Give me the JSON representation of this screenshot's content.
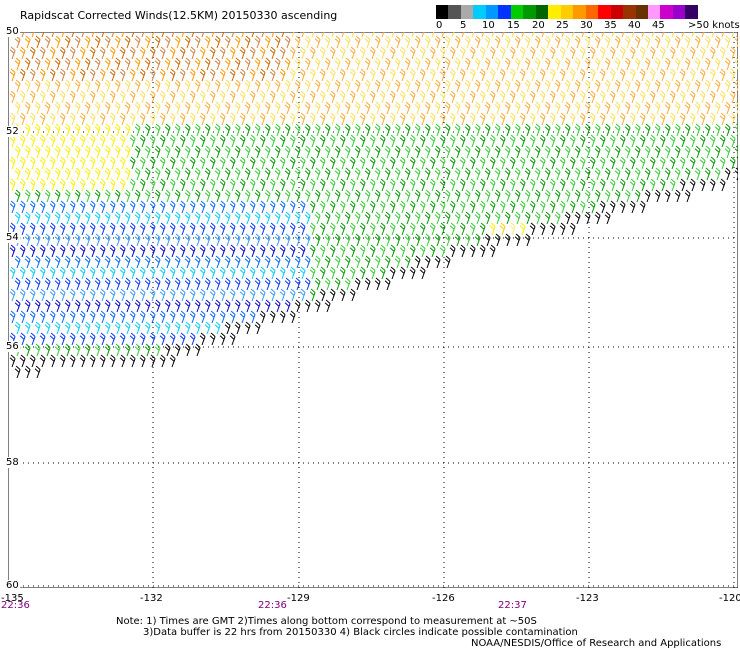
{
  "title": "Rapidscat Corrected Winds(12.5KM) 20150330 ascending",
  "colorbar": {
    "colors": [
      "#000000",
      "#555555",
      "#aaaaaa",
      "#00ccff",
      "#0099ff",
      "#0033ff",
      "#00cc00",
      "#009900",
      "#006600",
      "#ffee00",
      "#ffcc00",
      "#ff9900",
      "#ff6600",
      "#ff0000",
      "#cc0000",
      "#993300",
      "#663300",
      "#ff99ff",
      "#cc00cc",
      "#9900cc",
      "#330066"
    ],
    "labels": [
      "0",
      "5",
      "10",
      "15",
      "20",
      "25",
      "30",
      "35",
      "40",
      "45",
      ">50 knots"
    ]
  },
  "lat_labels": [
    "50",
    "52",
    "54",
    "56",
    "58",
    "60"
  ],
  "lon_labels": [
    "-135",
    "-132",
    "-129",
    "-126",
    "-123",
    "-120"
  ],
  "time_labels": [
    "22:36",
    "22:36",
    "22:37"
  ],
  "notes": {
    "line1": "Note: 1) Times are GMT 2)Times along bottom correspond to measurement at ~50S",
    "line2": "3)Data buffer is 22 hrs from 20150330 4) Black circles indicate possible contamination",
    "line3": "NOAA/NESDIS/Office of Research and Applications"
  },
  "wind_speed_bins": [
    {
      "speed_range_knots": "0-5",
      "color": "#000000"
    },
    {
      "speed_range_knots": "5-10",
      "color": "#00ccff"
    },
    {
      "speed_range_knots": "10-15",
      "color": "#0033ff"
    },
    {
      "speed_range_knots": "15-20",
      "color": "#009900"
    },
    {
      "speed_range_knots": "20-25",
      "color": "#ffcc00"
    },
    {
      "speed_range_knots": "25-30",
      "color": "#ff6600"
    },
    {
      "speed_range_knots": "30-35",
      "color": "#cc0000"
    }
  ]
}
